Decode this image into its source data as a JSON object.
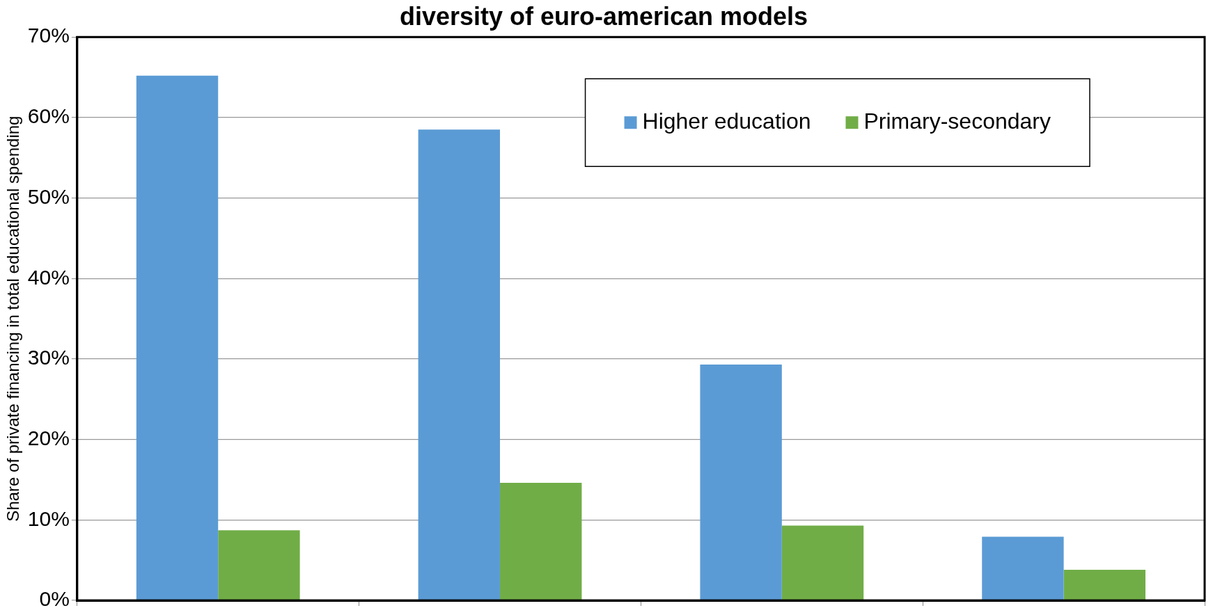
{
  "chart_data": {
    "type": "bar",
    "title": "diversity of euro-american models",
    "ylabel": "Share of private financing in total educational spending",
    "categories": [
      null,
      null,
      null,
      null
    ],
    "series": [
      {
        "name": "Higher education",
        "color": "#5b9bd5",
        "values": [
          65.2,
          58.5,
          29.3,
          7.9
        ]
      },
      {
        "name": "Primary-secondary",
        "color": "#70ad47",
        "values": [
          8.7,
          14.6,
          9.3,
          3.8
        ]
      }
    ],
    "ylim": [
      0,
      70
    ],
    "yticks": [
      {
        "value": 0,
        "label": "0%"
      },
      {
        "value": 10,
        "label": "10%"
      },
      {
        "value": 20,
        "label": "20%"
      },
      {
        "value": 30,
        "label": "30%"
      },
      {
        "value": 40,
        "label": "40%"
      },
      {
        "value": 50,
        "label": "50%"
      },
      {
        "value": 60,
        "label": "60%"
      },
      {
        "value": 70,
        "label": "70%"
      }
    ],
    "grid": "y",
    "legend": "top right"
  }
}
